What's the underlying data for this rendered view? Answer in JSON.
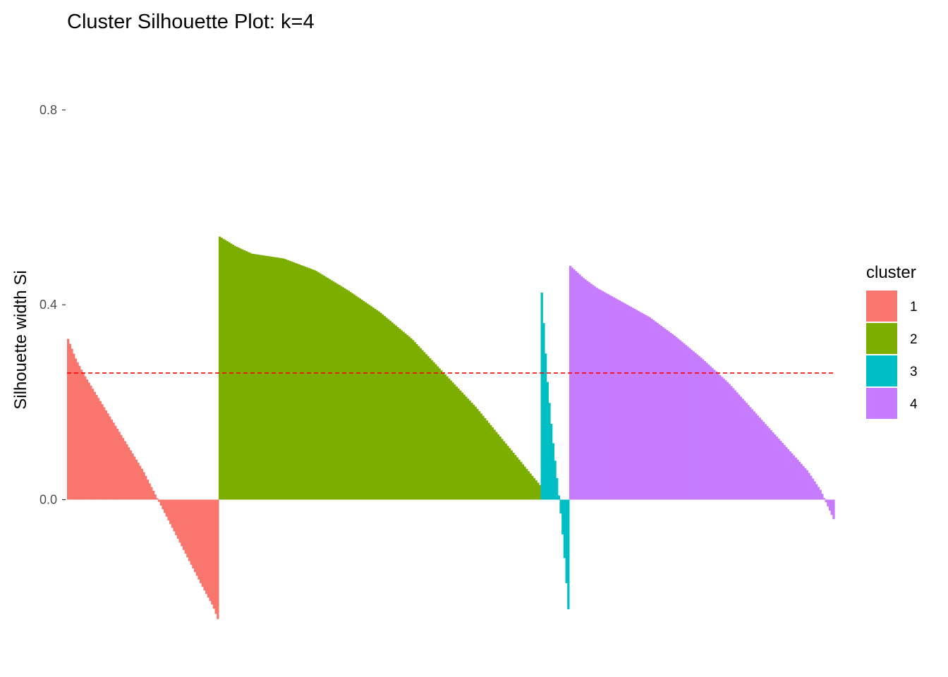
{
  "chart_data": {
    "type": "bar",
    "title": "Cluster Silhouette Plot: k=4",
    "xlabel": "",
    "ylabel": "Silhouette width Si",
    "ylim": [
      -0.27,
      0.92
    ],
    "yticks": [
      {
        "value": 0.0,
        "label": "0.0"
      },
      {
        "value": 0.4,
        "label": "0.4"
      },
      {
        "value": 0.8,
        "label": "0.8"
      }
    ],
    "average_silhouette": 0.26,
    "average_line_color": "#FF0000",
    "grid": false,
    "legend": {
      "title": "cluster",
      "position": "right",
      "entries": [
        {
          "label": "1",
          "color": "#F8766D"
        },
        {
          "label": "2",
          "color": "#7CAE00"
        },
        {
          "label": "3",
          "color": "#00BFC4"
        },
        {
          "label": "4",
          "color": "#C77CFF"
        }
      ]
    },
    "series": [
      {
        "cluster": "1",
        "color": "#F8766D",
        "count": 80,
        "profile": [
          [
            0.0,
            0.33
          ],
          [
            0.05,
            0.29
          ],
          [
            0.1,
            0.26
          ],
          [
            0.2,
            0.21
          ],
          [
            0.3,
            0.16
          ],
          [
            0.4,
            0.11
          ],
          [
            0.5,
            0.06
          ],
          [
            0.6,
            0.0
          ],
          [
            0.7,
            -0.06
          ],
          [
            0.8,
            -0.12
          ],
          [
            0.9,
            -0.18
          ],
          [
            0.97,
            -0.22
          ],
          [
            1.0,
            -0.245
          ]
        ]
      },
      {
        "cluster": "2",
        "color": "#7CAE00",
        "count": 170,
        "profile": [
          [
            0.0,
            0.54
          ],
          [
            0.05,
            0.52
          ],
          [
            0.1,
            0.505
          ],
          [
            0.2,
            0.495
          ],
          [
            0.3,
            0.47
          ],
          [
            0.4,
            0.43
          ],
          [
            0.5,
            0.385
          ],
          [
            0.6,
            0.33
          ],
          [
            0.7,
            0.26
          ],
          [
            0.8,
            0.19
          ],
          [
            0.9,
            0.11
          ],
          [
            1.0,
            0.03
          ]
        ]
      },
      {
        "cluster": "3",
        "color": "#00BFC4",
        "count": 15,
        "profile": [
          [
            0.0,
            0.425
          ],
          [
            0.2,
            0.25
          ],
          [
            0.4,
            0.13
          ],
          [
            0.6,
            0.03
          ],
          [
            0.7,
            -0.02
          ],
          [
            0.8,
            -0.08
          ],
          [
            0.9,
            -0.15
          ],
          [
            1.0,
            -0.225
          ]
        ]
      },
      {
        "cluster": "4",
        "color": "#C77CFF",
        "count": 140,
        "profile": [
          [
            0.0,
            0.48
          ],
          [
            0.05,
            0.455
          ],
          [
            0.1,
            0.435
          ],
          [
            0.2,
            0.405
          ],
          [
            0.3,
            0.375
          ],
          [
            0.4,
            0.335
          ],
          [
            0.5,
            0.29
          ],
          [
            0.6,
            0.24
          ],
          [
            0.7,
            0.18
          ],
          [
            0.8,
            0.12
          ],
          [
            0.9,
            0.06
          ],
          [
            0.95,
            0.02
          ],
          [
            1.0,
            -0.04
          ]
        ]
      }
    ]
  }
}
